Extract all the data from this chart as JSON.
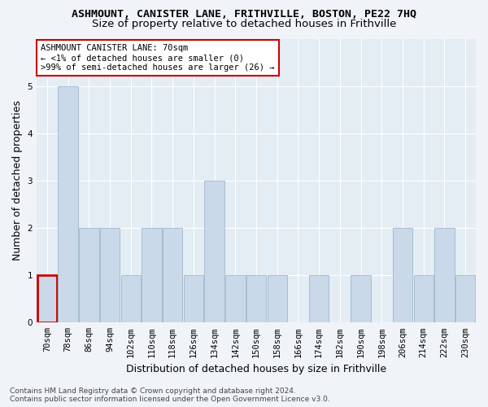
{
  "title": "ASHMOUNT, CANISTER LANE, FRITHVILLE, BOSTON, PE22 7HQ",
  "subtitle": "Size of property relative to detached houses in Frithville",
  "xlabel": "Distribution of detached houses by size in Frithville",
  "ylabel": "Number of detached properties",
  "categories": [
    "70sqm",
    "78sqm",
    "86sqm",
    "94sqm",
    "102sqm",
    "110sqm",
    "118sqm",
    "126sqm",
    "134sqm",
    "142sqm",
    "150sqm",
    "158sqm",
    "166sqm",
    "174sqm",
    "182sqm",
    "190sqm",
    "198sqm",
    "206sqm",
    "214sqm",
    "222sqm",
    "230sqm"
  ],
  "values": [
    1,
    5,
    2,
    2,
    1,
    2,
    2,
    1,
    3,
    1,
    1,
    1,
    0,
    1,
    0,
    1,
    0,
    2,
    1,
    2,
    1
  ],
  "bar_color": "#c9d9ea",
  "bar_edge_color": "#a0b8cc",
  "highlight_bar_index": 0,
  "highlight_bar_edge_color": "#cc0000",
  "background_color": "#f0f4f8",
  "plot_bg_color": "#e4ecf4",
  "grid_color": "#ffffff",
  "annotation_text": "ASHMOUNT CANISTER LANE: 70sqm\n← <1% of detached houses are smaller (0)\n>99% of semi-detached houses are larger (26) →",
  "annotation_box_color": "#ffffff",
  "annotation_box_edge_color": "#cc0000",
  "ylim": [
    0,
    6
  ],
  "yticks": [
    0,
    1,
    2,
    3,
    4,
    5
  ],
  "footer_text": "Contains HM Land Registry data © Crown copyright and database right 2024.\nContains public sector information licensed under the Open Government Licence v3.0.",
  "title_fontsize": 9.5,
  "subtitle_fontsize": 9.5,
  "xlabel_fontsize": 9,
  "ylabel_fontsize": 9,
  "tick_fontsize": 7.5,
  "annotation_fontsize": 7.5,
  "footer_fontsize": 6.5
}
